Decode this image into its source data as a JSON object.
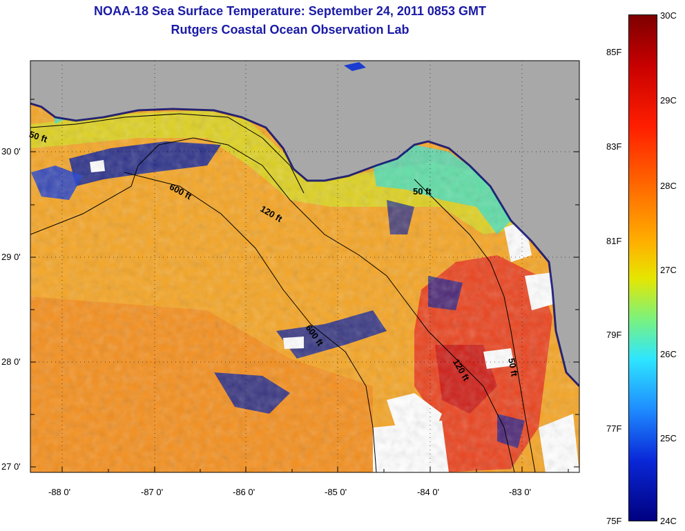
{
  "header": {
    "title": "NOAA-18 Sea Surface Temperature:  September 24, 2011 0853 GMT",
    "subtitle": "Rutgers Coastal Ocean Observation Lab"
  },
  "map": {
    "lat_labels": [
      "30 0'",
      "29 0'",
      "28 0'",
      "27 0'"
    ],
    "lon_labels": [
      "-88 0'",
      "-87 0'",
      "-86 0'",
      "-85 0'",
      "-84 0'",
      "-83 0'"
    ],
    "depth_labels": [
      "50 ft",
      "600 ft",
      "120 ft",
      "50 ft",
      "600 ft",
      "120 ft",
      "50 ft"
    ],
    "colors": {
      "land": "#a8a8a8",
      "ocean_warm": "#f5a524",
      "ocean_hot": "#e8321e",
      "cold": "#0a1e9c",
      "cloud": "#ffffff"
    }
  },
  "colorbar": {
    "fahrenheit": [
      "85F",
      "83F",
      "81F",
      "79F",
      "77F",
      "75F"
    ],
    "celsius": [
      "30C",
      "29C",
      "28C",
      "27C",
      "26C",
      "25C",
      "24C"
    ]
  }
}
